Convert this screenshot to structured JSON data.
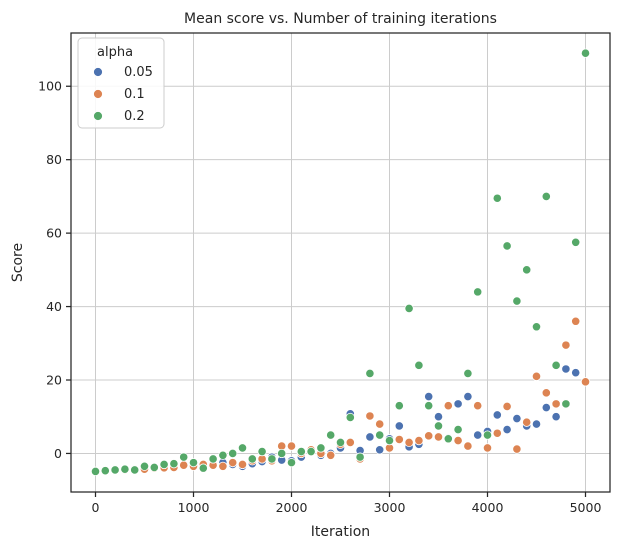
{
  "chart_data": {
    "type": "scatter",
    "title": "Mean score vs. Number of training iterations",
    "xlabel": "Iteration",
    "ylabel": "Score",
    "xlim": [
      -250,
      5250
    ],
    "ylim": [
      -10.5,
      114.5
    ],
    "xticks": [
      0,
      1000,
      2000,
      3000,
      4000,
      5000
    ],
    "yticks": [
      0,
      20,
      40,
      60,
      80,
      100
    ],
    "grid": true,
    "legend": {
      "title": "alpha",
      "placement": "top-left"
    },
    "series": [
      {
        "name": "0.05",
        "color": "#4c72b0",
        "x": [
          0,
          100,
          200,
          300,
          400,
          500,
          600,
          700,
          800,
          900,
          1000,
          1100,
          1200,
          1300,
          1400,
          1500,
          1600,
          1700,
          1800,
          1900,
          2000,
          2100,
          2200,
          2300,
          2400,
          2500,
          2600,
          2700,
          2800,
          2900,
          3000,
          3100,
          3200,
          3300,
          3400,
          3500,
          3600,
          3700,
          3800,
          3900,
          4000,
          4100,
          4200,
          4300,
          4400,
          4500,
          4600,
          4700,
          4800,
          4900,
          5000
        ],
        "y": [
          -4.9,
          -4.8,
          -4.6,
          -4.5,
          -4.3,
          -4.2,
          -4.0,
          -3.8,
          -3.5,
          -3.2,
          -3.0,
          -3.4,
          -2.8,
          -2.5,
          -3.0,
          -3.5,
          -2.8,
          -2.2,
          -1.0,
          -1.8,
          -2.0,
          -1.0,
          0.5,
          -0.5,
          0.0,
          1.5,
          10.8,
          0.8,
          4.5,
          1.0,
          4.0,
          7.5,
          1.8,
          2.5,
          15.5,
          10.0,
          4.2,
          13.5,
          15.5,
          5.0,
          6.0,
          10.5,
          6.5,
          9.5,
          7.5,
          8.0,
          12.5,
          10.0,
          23.0,
          22.0,
          19.5
        ]
      },
      {
        "name": "0.1",
        "color": "#dd8452",
        "x": [
          0,
          100,
          200,
          300,
          400,
          500,
          600,
          700,
          800,
          900,
          1000,
          1100,
          1200,
          1300,
          1400,
          1500,
          1600,
          1700,
          1800,
          1900,
          2000,
          2100,
          2200,
          2300,
          2400,
          2500,
          2600,
          2700,
          2800,
          2900,
          3000,
          3100,
          3200,
          3300,
          3400,
          3500,
          3600,
          3700,
          3800,
          3900,
          4000,
          4100,
          4200,
          4300,
          4400,
          4500,
          4600,
          4700,
          4800,
          4900,
          5000
        ],
        "y": [
          -4.8,
          -4.7,
          -4.6,
          -4.5,
          -4.4,
          -4.3,
          -4.0,
          -3.9,
          -3.8,
          -3.2,
          -3.5,
          -3.0,
          -3.2,
          -3.5,
          -2.5,
          -3.0,
          -2.0,
          -1.5,
          -2.0,
          2.0,
          2.0,
          0.0,
          1.0,
          0.0,
          -0.5,
          2.5,
          3.0,
          -1.5,
          10.2,
          8.0,
          1.5,
          3.8,
          3.0,
          3.5,
          4.8,
          4.5,
          13.0,
          3.5,
          2.0,
          13.0,
          1.5,
          5.5,
          12.8,
          1.2,
          8.5,
          21.0,
          16.5,
          13.5,
          29.5,
          36.0,
          19.5
        ]
      },
      {
        "name": "0.2",
        "color": "#55a868",
        "x": [
          0,
          100,
          200,
          300,
          400,
          500,
          600,
          700,
          800,
          900,
          1000,
          1100,
          1200,
          1300,
          1400,
          1500,
          1600,
          1700,
          1800,
          1900,
          2000,
          2100,
          2200,
          2300,
          2400,
          2500,
          2600,
          2700,
          2800,
          2900,
          3000,
          3100,
          3200,
          3300,
          3400,
          3500,
          3600,
          3700,
          3800,
          3900,
          4000,
          4100,
          4200,
          4300,
          4400,
          4500,
          4600,
          4700,
          4800,
          4900,
          5000
        ],
        "y": [
          -4.9,
          -4.7,
          -4.5,
          -4.3,
          -4.5,
          -3.5,
          -3.8,
          -3.0,
          -2.8,
          -1.0,
          -2.5,
          -4.0,
          -1.5,
          -0.5,
          0.0,
          1.5,
          -1.5,
          0.5,
          -1.5,
          0.0,
          -2.5,
          0.5,
          0.5,
          1.5,
          5.0,
          3.0,
          9.8,
          -1.0,
          21.8,
          5.0,
          3.5,
          13.0,
          39.5,
          24.0,
          13.0,
          7.5,
          4.0,
          6.5,
          21.8,
          44.0,
          5.0,
          69.5,
          56.5,
          41.5,
          50.0,
          34.5,
          70.0,
          24.0,
          13.5,
          57.5,
          109.0
        ]
      }
    ]
  }
}
